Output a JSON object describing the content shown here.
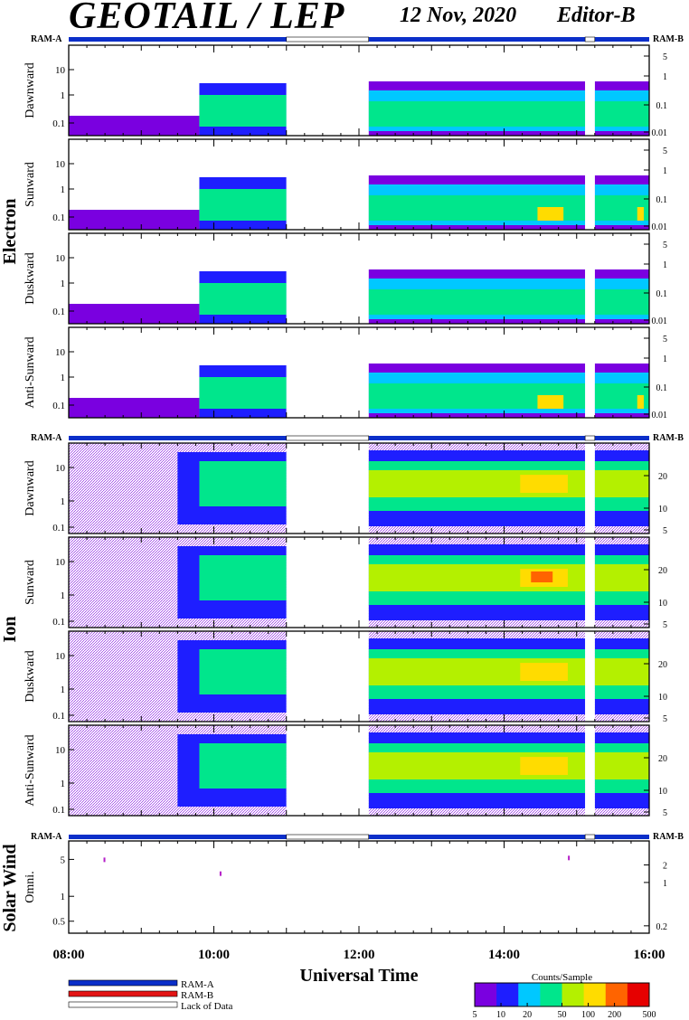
{
  "header": {
    "title": "GEOTAIL / LEP",
    "date": "12 Nov, 2020",
    "editor": "Editor-B"
  },
  "colors": {
    "ram_a": "#0b2fc9",
    "ram_b": "#e31414",
    "lack": "#ffffff"
  },
  "chart_data": {
    "type": "heatmap",
    "xlabel": "Universal Time",
    "x_ticks": [
      "08:00",
      "10:00",
      "12:00",
      "14:00",
      "16:00"
    ],
    "x_range": [
      "08:00",
      "16:00"
    ],
    "data_gaps": [
      [
        "11:00",
        "12:08"
      ],
      [
        "15:07",
        "15:15"
      ]
    ],
    "ram_labels": {
      "left": "RAM-A",
      "right": "RAM-B"
    },
    "groups": [
      {
        "name": "Electron",
        "left_ticks": [
          "0.1",
          "1",
          "10"
        ],
        "right_ticks": [
          "0.01",
          "0.1",
          "1",
          "5"
        ],
        "panels": [
          {
            "label": "Dawnward"
          },
          {
            "label": "Sunward"
          },
          {
            "label": "Duskward"
          },
          {
            "label": "Anti-Sunward"
          }
        ]
      },
      {
        "name": "Ion",
        "left_ticks": [
          "0.1",
          "1",
          "10"
        ],
        "right_ticks": [
          "5",
          "10",
          "20"
        ],
        "panels": [
          {
            "label": "Dawnward"
          },
          {
            "label": "Sunward"
          },
          {
            "label": "Duskward"
          },
          {
            "label": "Anti-Sunward"
          }
        ]
      },
      {
        "name": "Solar Wind",
        "left_ticks": [
          "0.5",
          "1",
          "5"
        ],
        "right_ticks": [
          "0.2",
          "1",
          "2"
        ],
        "panels": [
          {
            "label": "Omni."
          }
        ]
      }
    ],
    "legend": {
      "items": [
        "RAM-A",
        "RAM-B",
        "Lack of Data"
      ]
    },
    "colorbar": {
      "title": "Counts/Sample",
      "ticks": [
        "5",
        "10",
        "20",
        "50",
        "100",
        "200",
        "500"
      ],
      "range": [
        5,
        500
      ],
      "scale": "log",
      "colors": [
        "#7a00e0",
        "#1e1eff",
        "#00c8ff",
        "#00e68c",
        "#b4f000",
        "#ffdc00",
        "#ff6400",
        "#e60000"
      ]
    }
  }
}
